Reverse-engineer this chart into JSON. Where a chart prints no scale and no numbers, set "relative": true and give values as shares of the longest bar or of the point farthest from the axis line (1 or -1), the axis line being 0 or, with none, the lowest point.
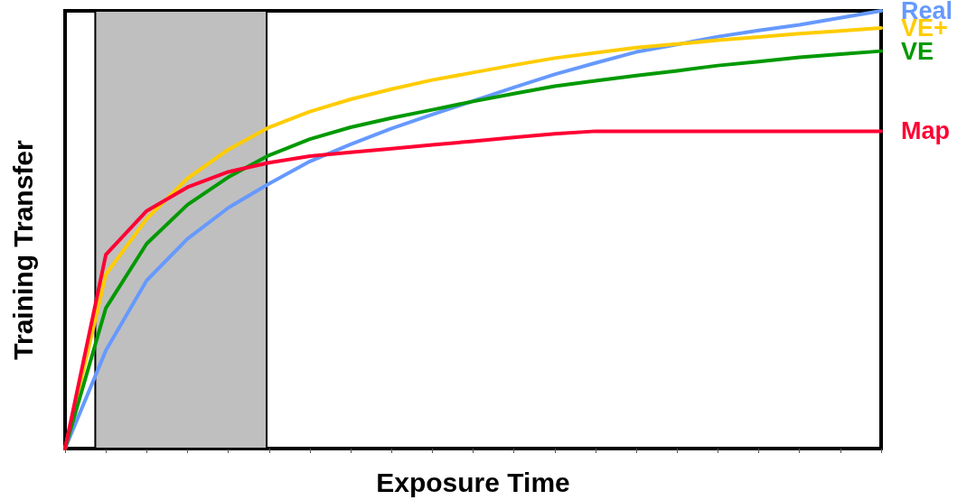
{
  "chart_data": {
    "type": "line",
    "relative": true,
    "xlabel": "Exposure Time",
    "ylabel": "Training Transfer",
    "grid": false,
    "legend": false,
    "marker": "none",
    "line_style": "solid",
    "categories": [
      null,
      null,
      null,
      null,
      null,
      null,
      null,
      null,
      null,
      null,
      null,
      null,
      null,
      null,
      null,
      null,
      null,
      null,
      null,
      null,
      null
    ],
    "series": [
      {
        "name": "Real",
        "color": "#6699ff",
        "values": [
          0,
          0.224,
          0.384,
          0.479,
          0.55,
          0.605,
          0.656,
          0.695,
          0.731,
          0.763,
          0.794,
          0.825,
          0.855,
          0.881,
          0.906,
          0.923,
          0.941,
          0.955,
          0.968,
          0.984,
          1
        ]
      },
      {
        "name": "VE+",
        "color": "#ffcc00",
        "values": [
          0,
          0.398,
          0.525,
          0.617,
          0.683,
          0.734,
          0.77,
          0.798,
          0.821,
          0.842,
          0.859,
          0.876,
          0.892,
          0.904,
          0.916,
          0.924,
          0.933,
          0.94,
          0.948,
          0.954,
          0.961
        ]
      },
      {
        "name": "VE",
        "color": "#009900",
        "values": [
          0,
          0.321,
          0.468,
          0.557,
          0.62,
          0.67,
          0.707,
          0.734,
          0.755,
          0.774,
          0.793,
          0.811,
          0.828,
          0.84,
          0.852,
          0.863,
          0.875,
          0.884,
          0.894,
          0.901,
          0.908
        ]
      },
      {
        "name": "Map",
        "color": "#ff0033",
        "values": [
          0,
          0.443,
          0.543,
          0.597,
          0.632,
          0.653,
          0.668,
          0.677,
          0.685,
          0.694,
          0.702,
          0.711,
          0.719,
          0.725,
          0.725,
          0.725,
          0.725,
          0.725,
          0.725,
          0.725,
          0.725
        ]
      }
    ]
  }
}
